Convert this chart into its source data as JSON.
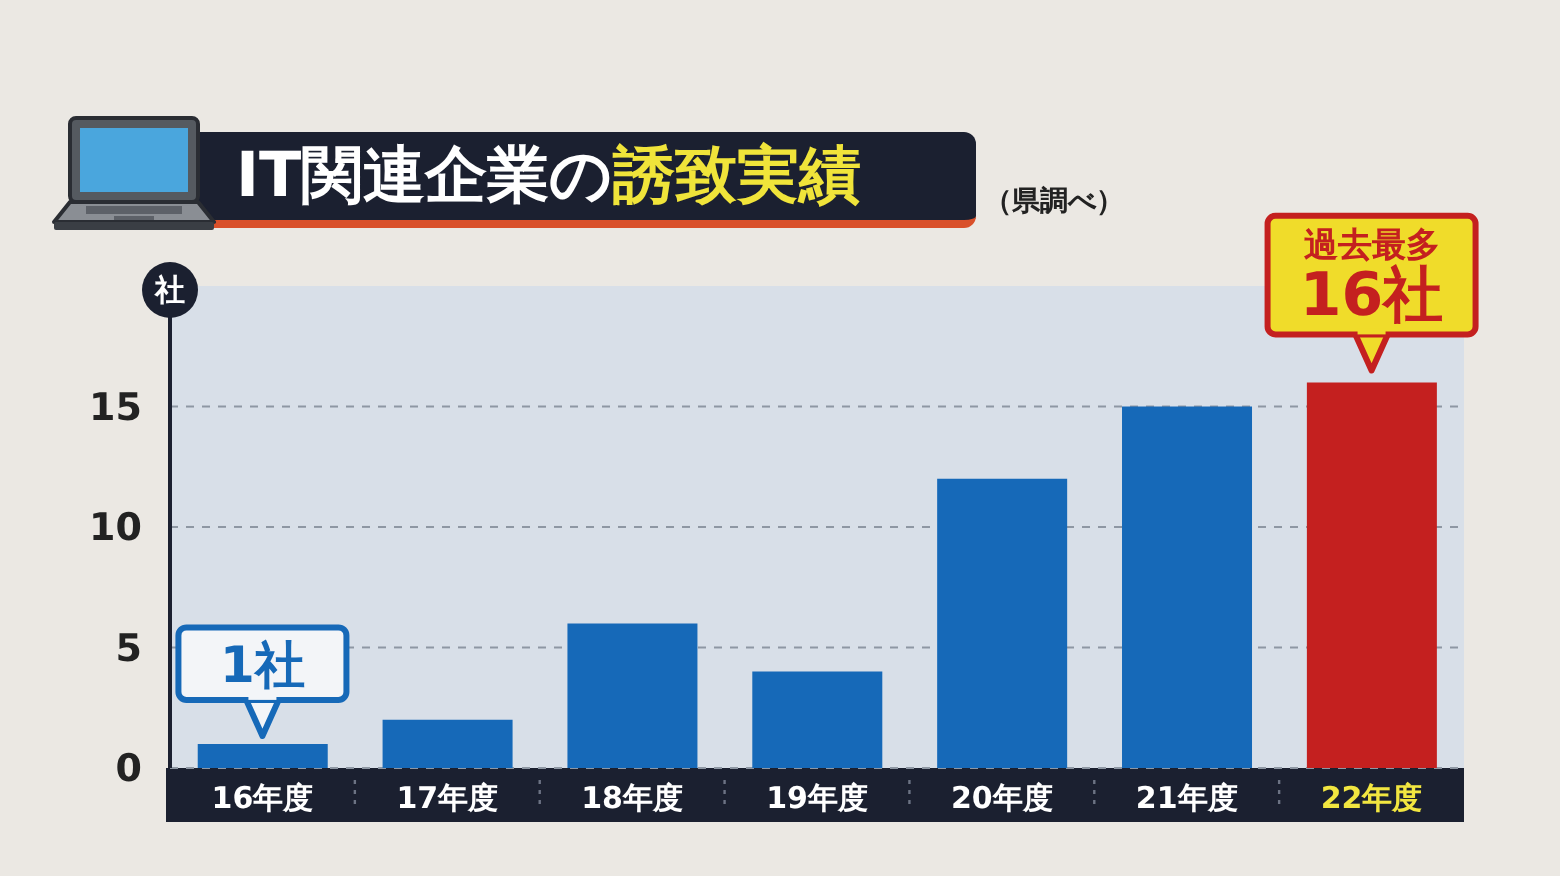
{
  "chart_data": {
    "type": "bar",
    "title": "IT関連企業の誘致実績",
    "ylabel": "社",
    "categories": [
      "16年度",
      "17年度",
      "18年度",
      "19年度",
      "20年度",
      "21年度",
      "22年度"
    ],
    "values": [
      1,
      2,
      6,
      4,
      12,
      15,
      16
    ],
    "colors": [
      "#1669b8",
      "#1669b8",
      "#1669b8",
      "#1669b8",
      "#1669b8",
      "#1669b8",
      "#c4201f"
    ],
    "ylim": [
      0,
      20
    ],
    "yticks": [
      0,
      5,
      10,
      15
    ],
    "grid": "y",
    "annotations": [
      {
        "text": "1社",
        "x": "16年度",
        "y": 1
      },
      {
        "text": "過去最多\n16社",
        "x": "22年度",
        "y": 16
      },
      "（県調べ）"
    ]
  }
}
